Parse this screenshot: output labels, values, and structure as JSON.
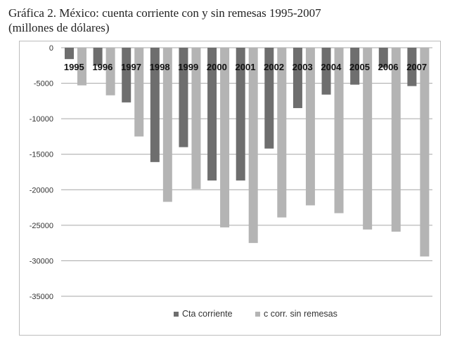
{
  "chart_data": {
    "type": "bar",
    "title_line1": "Gráfica 2. México: cuenta corriente con y sin remesas 1995-2007",
    "title_line2": "(millones de dólares)",
    "categories": [
      "1995",
      "1996",
      "1997",
      "1998",
      "1999",
      "2000",
      "2001",
      "2002",
      "2003",
      "2004",
      "2005",
      "2006",
      "2007"
    ],
    "series": [
      {
        "name": "Cta corriente",
        "color": "#6e6e6e",
        "values": [
          -1600,
          -2500,
          -7700,
          -16100,
          -14000,
          -18700,
          -18700,
          -14200,
          -8500,
          -6600,
          -5200,
          -2800,
          -5400
        ]
      },
      {
        "name": "c corr. sin remesas",
        "color": "#b4b4b4",
        "values": [
          -5300,
          -6700,
          -12500,
          -21700,
          -19900,
          -25300,
          -27500,
          -23900,
          -22200,
          -23300,
          -25600,
          -25900,
          -29400
        ]
      }
    ],
    "yticks": [
      0,
      -5000,
      -10000,
      -15000,
      -20000,
      -25000,
      -30000,
      -35000
    ],
    "ytick_labels": [
      "0",
      "-5000",
      "-10000",
      "-15000",
      "-20000",
      "-25000",
      "-30000",
      "-35000"
    ],
    "ylim": [
      -35000,
      0
    ],
    "grid": true,
    "legend_position": "bottom"
  }
}
